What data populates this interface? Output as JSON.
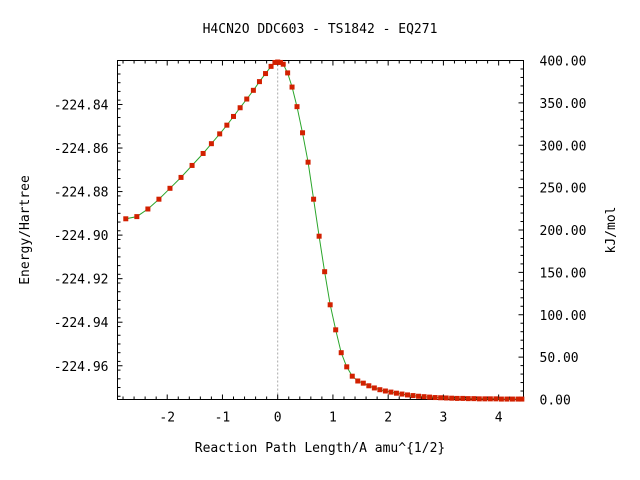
{
  "chart_data": {
    "type": "line",
    "title": "H4CN2O   DDC603 - TS1842 - EQ271",
    "xlabel": "Reaction Path Length/A amu^{1/2}",
    "ylabel": "Energy/Hartree",
    "y2label": "kJ/mol",
    "xlim": [
      -2.9,
      4.45
    ],
    "ylim": [
      -224.9755,
      -224.8198
    ],
    "y2lim": [
      0,
      400
    ],
    "x_ticks": [
      "-2",
      "-1",
      "0",
      "1",
      "2",
      "3",
      "4"
    ],
    "y_ticks": [
      "-224.84",
      "-224.86",
      "-224.88",
      "-224.90",
      "-224.92",
      "-224.94",
      "-224.96"
    ],
    "y2_ticks": [
      "400.00",
      "350.00",
      "300.00",
      "250.00",
      "200.00",
      "150.00",
      "100.00",
      "50.00",
      "0.00"
    ],
    "ts_x": 0,
    "grid": false,
    "colors": {
      "line": "#2aa52a",
      "marker": "#d22000",
      "ts_line": "#aaaaaa"
    },
    "series": [
      {
        "x": [
          -2.75,
          -2.55,
          -2.35,
          -2.15,
          -1.95,
          -1.75,
          -1.55,
          -1.35,
          -1.2,
          -1.05,
          -0.92,
          -0.8,
          -0.68,
          -0.56,
          -0.44,
          -0.33,
          -0.22,
          -0.12,
          -0.05,
          0.0,
          0.05,
          0.1,
          0.18,
          0.26,
          0.35,
          0.45,
          0.55,
          0.65,
          0.75,
          0.85,
          0.95,
          1.05,
          1.15,
          1.25,
          1.35,
          1.45,
          1.55,
          1.65,
          1.75,
          1.85,
          1.95,
          2.05,
          2.15,
          2.25,
          2.35,
          2.45,
          2.55,
          2.65,
          2.75,
          2.85,
          2.95,
          3.05,
          3.15,
          3.25,
          3.35,
          3.45,
          3.55,
          3.65,
          3.75,
          3.85,
          3.95,
          4.05,
          4.15,
          4.25,
          4.35,
          4.42
        ],
        "y": [
          -224.8925,
          -224.8915,
          -224.888,
          -224.8835,
          -224.8785,
          -224.8735,
          -224.868,
          -224.8625,
          -224.858,
          -224.8535,
          -224.8495,
          -224.8455,
          -224.8415,
          -224.8375,
          -224.8335,
          -224.8295,
          -224.8258,
          -224.8225,
          -224.8207,
          -224.8205,
          -224.8207,
          -224.8215,
          -224.8255,
          -224.832,
          -224.841,
          -224.853,
          -224.8665,
          -224.8835,
          -224.9005,
          -224.9168,
          -224.932,
          -224.9435,
          -224.954,
          -224.9605,
          -224.9648,
          -224.967,
          -224.968,
          -224.9692,
          -224.9702,
          -224.971,
          -224.9716,
          -224.9721,
          -224.9726,
          -224.973,
          -224.9734,
          -224.9737,
          -224.974,
          -224.9742,
          -224.9744,
          -224.9746,
          -224.9747,
          -224.9748,
          -224.9749,
          -224.975,
          -224.975,
          -224.9751,
          -224.9751,
          -224.9752,
          -224.9752,
          -224.9752,
          -224.9752,
          -224.9753,
          -224.9753,
          -224.9753,
          -224.9753,
          -224.9753
        ]
      }
    ]
  }
}
